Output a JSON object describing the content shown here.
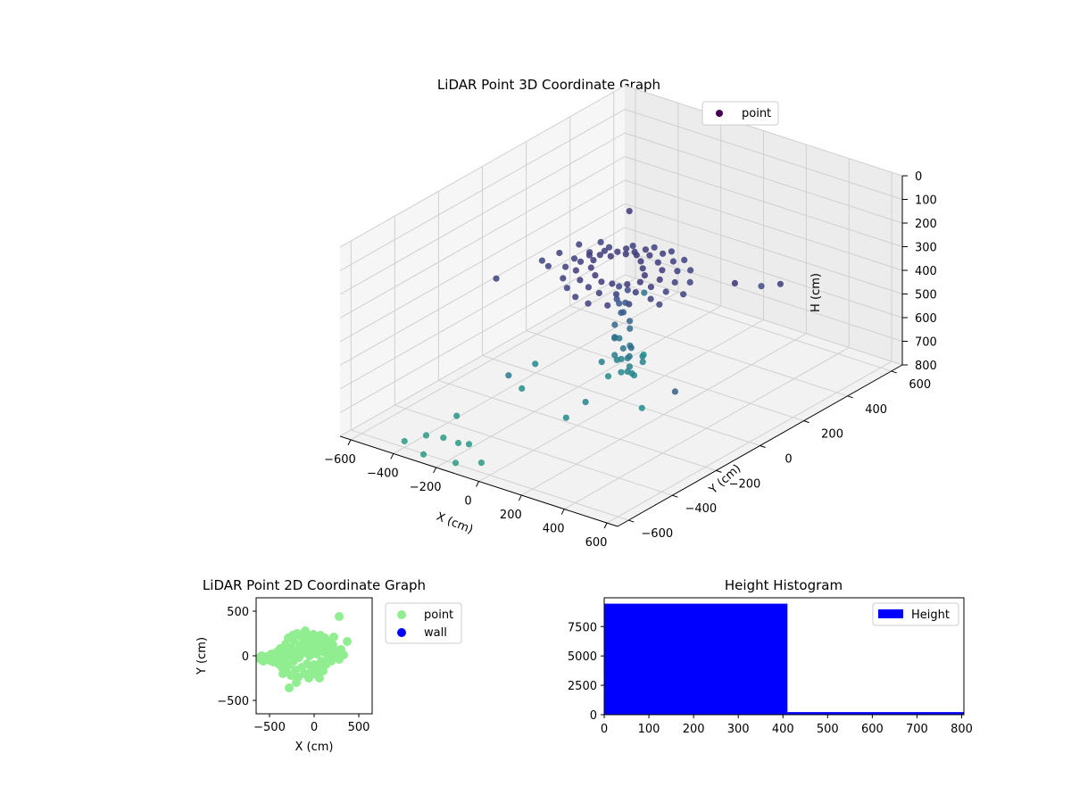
{
  "chart_data": [
    {
      "type": "scatter",
      "title": "LiDAR Point 3D Coordinate Graph",
      "xlabel": "X (cm)",
      "ylabel": "Y (cm)",
      "zlabel": "H (cm)",
      "xlim": [
        -650,
        650
      ],
      "ylim": [
        -650,
        650
      ],
      "zlim": [
        0,
        800
      ],
      "z_inverted": true,
      "xticks": [
        -600,
        -400,
        -200,
        0,
        200,
        400,
        600
      ],
      "yticks": [
        -600,
        -400,
        -200,
        0,
        200,
        400,
        600
      ],
      "zticks": [
        0,
        100,
        200,
        300,
        400,
        500,
        600,
        700,
        800
      ],
      "grid": true,
      "legend": {
        "position": "top-right",
        "entries": [
          {
            "label": "point",
            "color": "#440154"
          }
        ]
      },
      "colormap": "viridis",
      "color_by": "H",
      "series": [
        {
          "name": "point",
          "points": [
            [
              -100,
              50,
              245
            ],
            [
              -60,
              80,
              240
            ],
            [
              -20,
              90,
              238
            ],
            [
              20,
              70,
              242
            ],
            [
              60,
              40,
              244
            ],
            [
              100,
              10,
              246
            ],
            [
              120,
              -30,
              248
            ],
            [
              90,
              -60,
              250
            ],
            [
              40,
              -80,
              252
            ],
            [
              0,
              -90,
              250
            ],
            [
              -50,
              -70,
              248
            ],
            [
              -100,
              -40,
              246
            ],
            [
              -130,
              0,
              244
            ],
            [
              -140,
              40,
              246
            ],
            [
              -110,
              90,
              250
            ],
            [
              -60,
              120,
              252
            ],
            [
              0,
              130,
              254
            ],
            [
              60,
              110,
              256
            ],
            [
              110,
              80,
              258
            ],
            [
              150,
              30,
              260
            ],
            [
              160,
              -20,
              262
            ],
            [
              140,
              -70,
              264
            ],
            [
              90,
              -110,
              266
            ],
            [
              30,
              -130,
              268
            ],
            [
              -30,
              -120,
              266
            ],
            [
              -90,
              -100,
              264
            ],
            [
              -150,
              -60,
              262
            ],
            [
              -180,
              -10,
              260
            ],
            [
              -190,
              40,
              262
            ],
            [
              -170,
              90,
              264
            ],
            [
              -120,
              140,
              266
            ],
            [
              -60,
              170,
              268
            ],
            [
              10,
              180,
              270
            ],
            [
              80,
              160,
              272
            ],
            [
              140,
              120,
              274
            ],
            [
              190,
              60,
              276
            ],
            [
              210,
              0,
              278
            ],
            [
              200,
              -60,
              280
            ],
            [
              160,
              -120,
              282
            ],
            [
              100,
              -160,
              284
            ],
            [
              30,
              -180,
              286
            ],
            [
              -40,
              -170,
              284
            ],
            [
              -110,
              -140,
              282
            ],
            [
              -170,
              -100,
              280
            ],
            [
              -220,
              -40,
              278
            ],
            [
              -240,
              20,
              280
            ],
            [
              -230,
              80,
              282
            ],
            [
              -200,
              140,
              284
            ],
            [
              -140,
              190,
              286
            ],
            [
              -70,
              220,
              288
            ],
            [
              0,
              230,
              290
            ],
            [
              80,
              210,
              292
            ],
            [
              150,
              170,
              294
            ],
            [
              210,
              110,
              296
            ],
            [
              250,
              40,
              298
            ],
            [
              -300,
              100,
              280
            ],
            [
              -320,
              30,
              285
            ],
            [
              -290,
              -50,
              290
            ],
            [
              -260,
              160,
              290
            ],
            [
              -350,
              -20,
              300
            ],
            [
              230,
              -50,
              300
            ],
            [
              -10,
              0,
              320
            ],
            [
              10,
              20,
              340
            ],
            [
              0,
              -20,
              360
            ],
            [
              20,
              0,
              380
            ],
            [
              -20,
              10,
              400
            ],
            [
              10,
              -10,
              420
            ],
            [
              -10,
              20,
              440
            ],
            [
              30,
              10,
              460
            ],
            [
              -20,
              -10,
              480
            ],
            [
              20,
              20,
              500
            ],
            [
              0,
              -30,
              520
            ],
            [
              -30,
              0,
              540
            ],
            [
              30,
              -20,
              560
            ],
            [
              10,
              30,
              580
            ],
            [
              -10,
              -20,
              600
            ],
            [
              20,
              10,
              620
            ],
            [
              -20,
              20,
              640
            ],
            [
              40,
              -10,
              660
            ],
            [
              0,
              0,
              680
            ],
            [
              30,
              30,
              700
            ],
            [
              -30,
              -30,
              690
            ],
            [
              50,
              0,
              670
            ],
            [
              -40,
              20,
              650
            ],
            [
              60,
              40,
              640
            ],
            [
              -50,
              -40,
              630
            ],
            [
              70,
              -30,
              620
            ],
            [
              80,
              20,
              600
            ],
            [
              -60,
              50,
              580
            ],
            [
              90,
              -50,
              560
            ],
            [
              -300,
              330,
              260
            ],
            [
              -380,
              -200,
              290
            ],
            [
              400,
              250,
              330
            ],
            [
              430,
              100,
              230
            ],
            [
              520,
              220,
              270
            ],
            [
              560,
              -300,
              440
            ],
            [
              150,
              -100,
              480
            ],
            [
              -200,
              300,
              560
            ],
            [
              -220,
              -300,
              600
            ],
            [
              100,
              -260,
              640
            ],
            [
              -300,
              -100,
              680
            ],
            [
              -260,
              -200,
              720
            ],
            [
              50,
              -300,
              700
            ],
            [
              200,
              -100,
              720
            ],
            [
              -100,
              200,
              740
            ],
            [
              -360,
              -400,
              760
            ],
            [
              -200,
              -500,
              780
            ],
            [
              -160,
              -600,
              795
            ],
            [
              -80,
              -560,
              792
            ],
            [
              -420,
              -580,
              790
            ],
            [
              -300,
              -610,
              795
            ],
            [
              -380,
              -520,
              785
            ],
            [
              -250,
              -500,
              790
            ],
            [
              -320,
              -500,
              788
            ]
          ]
        }
      ]
    },
    {
      "type": "scatter",
      "title": "LiDAR Point 2D Coordinate Graph",
      "xlabel": "X (cm)",
      "ylabel": "Y (cm)",
      "xlim": [
        -650,
        650
      ],
      "ylim": [
        -650,
        650
      ],
      "xticks": [
        -500,
        0,
        500
      ],
      "yticks": [
        -500,
        0,
        500
      ],
      "xtick_labels": [
        "−500",
        "0",
        "500"
      ],
      "ytick_labels": [
        "−500",
        "0",
        "500"
      ],
      "legend": {
        "position": "outside-right",
        "entries": [
          {
            "label": "point",
            "color": "#90ee90"
          },
          {
            "label": "wall",
            "color": "#0000ff"
          }
        ]
      },
      "series": [
        {
          "name": "point",
          "color": "#90ee90",
          "points": [
            [
              -600,
              -40
            ],
            [
              -600,
              -10
            ],
            [
              -590,
              0
            ],
            [
              -570,
              -60
            ],
            [
              -560,
              -30
            ],
            [
              -530,
              -10
            ],
            [
              -500,
              -50
            ],
            [
              -480,
              20
            ],
            [
              -460,
              -70
            ],
            [
              -440,
              -20
            ],
            [
              -420,
              40
            ],
            [
              -400,
              -90
            ],
            [
              -390,
              10
            ],
            [
              -380,
              80
            ],
            [
              -360,
              -130
            ],
            [
              -340,
              -40
            ],
            [
              -330,
              60
            ],
            [
              -320,
              130
            ],
            [
              -310,
              -180
            ],
            [
              -300,
              0
            ],
            [
              -290,
              200
            ],
            [
              -280,
              -100
            ],
            [
              -270,
              90
            ],
            [
              -260,
              -220
            ],
            [
              -250,
              30
            ],
            [
              -240,
              230
            ],
            [
              -230,
              -60
            ],
            [
              -220,
              160
            ],
            [
              -210,
              -160
            ],
            [
              -200,
              60
            ],
            [
              -190,
              250
            ],
            [
              -180,
              -240
            ],
            [
              -170,
              -20
            ],
            [
              -160,
              110
            ],
            [
              -150,
              230
            ],
            [
              -140,
              -130
            ],
            [
              -130,
              30
            ],
            [
              -120,
              180
            ],
            [
              -110,
              -200
            ],
            [
              -100,
              70
            ],
            [
              -90,
              240
            ],
            [
              -80,
              -90
            ],
            [
              -70,
              130
            ],
            [
              -60,
              -250
            ],
            [
              -50,
              0
            ],
            [
              -40,
              200
            ],
            [
              -30,
              -160
            ],
            [
              -20,
              60
            ],
            [
              -10,
              240
            ],
            [
              0,
              -100
            ],
            [
              10,
              120
            ],
            [
              20,
              -210
            ],
            [
              30,
              20
            ],
            [
              40,
              180
            ],
            [
              50,
              -140
            ],
            [
              60,
              80
            ],
            [
              70,
              230
            ],
            [
              80,
              -60
            ],
            [
              90,
              140
            ],
            [
              100,
              -170
            ],
            [
              110,
              40
            ],
            [
              120,
              200
            ],
            [
              130,
              -100
            ],
            [
              140,
              100
            ],
            [
              150,
              -40
            ],
            [
              160,
              170
            ],
            [
              170,
              0
            ],
            [
              180,
              90
            ],
            [
              190,
              -60
            ],
            [
              200,
              30
            ],
            [
              210,
              120
            ],
            [
              230,
              -20
            ],
            [
              240,
              60
            ],
            [
              260,
              20
            ],
            [
              280,
              -40
            ],
            [
              -280,
              -360
            ],
            [
              280,
              440
            ],
            [
              370,
              160
            ],
            [
              330,
              10
            ],
            [
              300,
              70
            ],
            [
              -350,
              -200
            ],
            [
              -200,
              -300
            ],
            [
              -100,
              280
            ],
            [
              60,
              -250
            ],
            [
              220,
              210
            ]
          ]
        },
        {
          "name": "wall",
          "color": "#0000ff",
          "points": []
        }
      ]
    },
    {
      "type": "bar",
      "title": "Height Histogram",
      "xlim": [
        0,
        805
      ],
      "ylim": [
        0,
        9950
      ],
      "xticks": [
        0,
        100,
        200,
        300,
        400,
        500,
        600,
        700,
        800
      ],
      "yticks": [
        0,
        2500,
        5000,
        7500
      ],
      "bins": [
        [
          0,
          410
        ],
        [
          410,
          805
        ]
      ],
      "values": [
        9450,
        220
      ],
      "legend": {
        "position": "top-right",
        "entries": [
          {
            "label": "Height",
            "color": "#0000ff"
          }
        ]
      },
      "series": [
        {
          "name": "Height",
          "color": "#0000ff"
        }
      ]
    }
  ]
}
